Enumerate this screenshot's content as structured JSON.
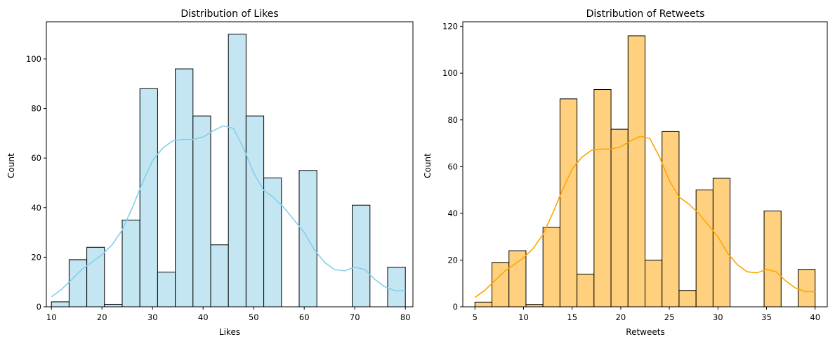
{
  "chart_data": [
    {
      "type": "bar",
      "title": "Distribution of Likes",
      "xlabel": "Likes",
      "ylabel": "Count",
      "xlim": [
        9,
        81.5
      ],
      "ylim": [
        0,
        115
      ],
      "xticks": [
        10,
        20,
        30,
        40,
        50,
        60,
        70,
        80
      ],
      "yticks": [
        0,
        20,
        40,
        60,
        80,
        100
      ],
      "bar_color": "#87CEEB",
      "bar_fill": "#C4E6F3",
      "kde_color": "#87CEEB",
      "bins": {
        "start": 10,
        "width": 3.5,
        "counts": [
          2,
          19,
          24,
          1,
          35,
          88,
          14,
          96,
          77,
          25,
          110,
          77,
          52,
          0,
          55,
          0,
          0,
          41,
          0,
          16
        ]
      },
      "kde": {
        "x": [
          10,
          12,
          14,
          16,
          18,
          20,
          22,
          24,
          26,
          28,
          30,
          32,
          34,
          36,
          38,
          40,
          42,
          44,
          46,
          48,
          50,
          52,
          54,
          56,
          58,
          60,
          62,
          64,
          66,
          68,
          70,
          72,
          74,
          76,
          78,
          80
        ],
        "y": [
          4,
          7,
          11,
          15,
          18,
          21,
          25,
          31,
          40,
          50,
          59,
          64,
          67,
          67.5,
          67.5,
          68.5,
          71,
          73,
          72,
          64,
          54,
          47,
          44,
          40,
          35,
          30,
          23,
          18,
          15,
          14.5,
          16,
          15,
          11,
          8,
          6.5,
          6.5
        ]
      }
    },
    {
      "type": "bar",
      "title": "Distribution of Retweets",
      "xlabel": "Retweets",
      "ylabel": "Count",
      "xlim": [
        3.75,
        41.25
      ],
      "ylim": [
        0,
        122
      ],
      "xticks": [
        5,
        10,
        15,
        20,
        25,
        30,
        35,
        40
      ],
      "yticks": [
        0,
        20,
        40,
        60,
        80,
        100,
        120
      ],
      "bar_color": "#FFA500",
      "bar_fill": "#FFD17F",
      "kde_color": "#FFA500",
      "bins": {
        "start": 5,
        "width": 1.75,
        "counts": [
          2,
          19,
          24,
          1,
          34,
          89,
          14,
          93,
          76,
          116,
          20,
          75,
          7,
          50,
          55,
          0,
          0,
          41,
          0,
          16
        ]
      },
      "kde": {
        "x": [
          5,
          6,
          7,
          8,
          9,
          10,
          11,
          12,
          13,
          14,
          15,
          16,
          17,
          18,
          19,
          20,
          21,
          22,
          23,
          24,
          25,
          26,
          27,
          28,
          29,
          30,
          31,
          32,
          33,
          34,
          35,
          36,
          37,
          38,
          39,
          40
        ],
        "y": [
          4,
          7,
          11,
          15,
          18,
          21,
          25,
          31,
          40,
          50,
          59,
          64,
          67,
          67.5,
          67.5,
          68.5,
          71,
          73,
          72,
          64,
          54,
          47,
          44,
          40,
          35,
          30,
          23,
          18,
          15,
          14.5,
          16,
          15,
          11,
          8,
          6.5,
          6.5
        ]
      }
    }
  ]
}
